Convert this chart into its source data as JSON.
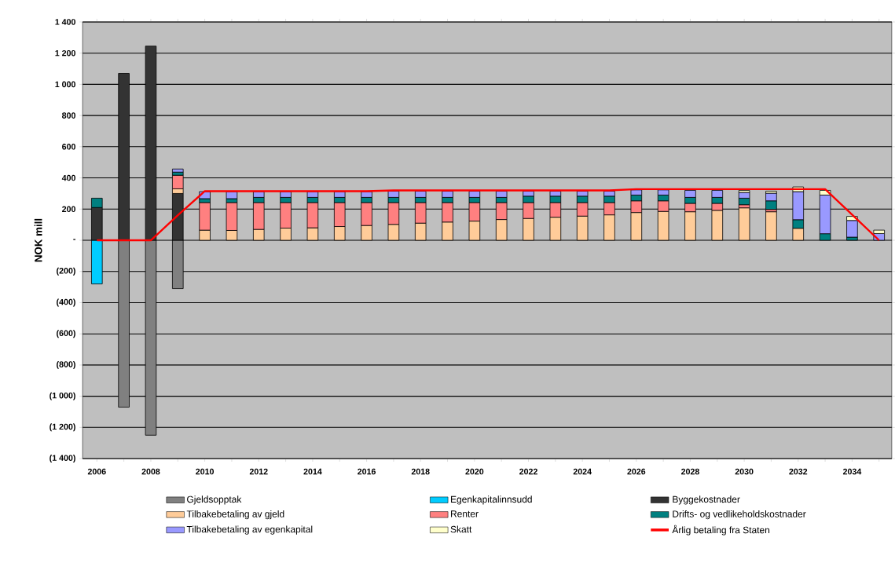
{
  "chart_data": {
    "type": "bar",
    "stacked": true,
    "ylabel": "NOK mill",
    "grid": "y",
    "legend": "bottom",
    "categories": [
      "2006",
      null,
      "2008",
      null,
      "2010",
      null,
      "2012",
      null,
      "2014",
      null,
      "2016",
      null,
      "2018",
      null,
      "2020",
      null,
      "2022",
      null,
      "2024",
      null,
      "2026",
      null,
      "2028",
      null,
      "2030",
      null,
      "2032",
      null,
      "2034",
      null
    ],
    "ylim": [
      -1400,
      1400
    ],
    "yticks": [
      {
        "value": -1400,
        "label": "(1 400)"
      },
      {
        "value": -1200,
        "label": "(1 200)"
      },
      {
        "value": -1000,
        "label": "(1 000)"
      },
      {
        "value": -800,
        "label": "(800)"
      },
      {
        "value": -600,
        "label": "(600)"
      },
      {
        "value": -400,
        "label": "(400)"
      },
      {
        "value": -200,
        "label": "(200)"
      },
      {
        "value": 0,
        "label": "-"
      },
      200,
      400,
      600,
      800,
      {
        "value": 1000,
        "label": "1 000"
      },
      {
        "value": 1200,
        "label": "1 200"
      },
      {
        "value": 1400,
        "label": "1 400"
      }
    ],
    "series": [
      {
        "name": "Gjeldsopptak",
        "color": "#808080",
        "values": [
          null,
          -1070,
          -1250,
          -310,
          null,
          null,
          null,
          null,
          null,
          null,
          null,
          null,
          null,
          null,
          null,
          null,
          null,
          null,
          null,
          null,
          null,
          null,
          null,
          null,
          null,
          null,
          null,
          null,
          null,
          null
        ]
      },
      {
        "name": "Egenkapitalinnsudd",
        "color": "#00ccff",
        "values": [
          -280,
          null,
          null,
          null,
          null,
          null,
          null,
          null,
          null,
          null,
          null,
          null,
          null,
          null,
          null,
          null,
          null,
          null,
          null,
          null,
          null,
          null,
          null,
          null,
          null,
          null,
          null,
          null,
          null,
          null
        ]
      },
      {
        "name": "Byggekostnader",
        "color": "#333333",
        "values": [
          210,
          1070,
          1245,
          300,
          null,
          null,
          null,
          null,
          null,
          null,
          null,
          null,
          null,
          null,
          null,
          null,
          null,
          null,
          null,
          null,
          null,
          null,
          null,
          null,
          null,
          null,
          null,
          null,
          null,
          null
        ]
      },
      {
        "name": "Tilbakebetaling av gjeld",
        "color": "#ffcc99",
        "values": [
          null,
          null,
          null,
          30,
          65,
          63,
          70,
          78,
          80,
          88,
          95,
          102,
          110,
          117,
          123,
          133,
          140,
          148,
          155,
          163,
          178,
          185,
          183,
          192,
          208,
          183,
          77,
          null,
          null,
          null
        ]
      },
      {
        "name": "Renter",
        "color": "#ff8080",
        "values": [
          null,
          null,
          null,
          87,
          177,
          179,
          172,
          164,
          162,
          154,
          147,
          140,
          132,
          125,
          119,
          109,
          102,
          94,
          87,
          79,
          75,
          68,
          54,
          45,
          20,
          15,
          null,
          null,
          null,
          null
        ]
      },
      {
        "name": "Drifts- og vedlikeholdskostnader",
        "color": "#008080",
        "values": [
          60,
          null,
          null,
          20,
          25,
          25,
          33,
          33,
          33,
          33,
          33,
          33,
          33,
          33,
          33,
          33,
          41,
          41,
          41,
          41,
          37,
          37,
          38,
          38,
          42,
          55,
          55,
          42,
          20,
          null
        ]
      },
      {
        "name": "Tilbakebetaling av egenkapital",
        "color": "#9999ff",
        "values": [
          null,
          null,
          null,
          20,
          45,
          45,
          37,
          37,
          37,
          37,
          37,
          40,
          40,
          40,
          40,
          40,
          32,
          32,
          32,
          32,
          33,
          33,
          45,
          45,
          37,
          49,
          180,
          248,
          107,
          43
        ]
      },
      {
        "name": "Skatt",
        "color": "#ffffcc",
        "values": [
          null,
          null,
          null,
          null,
          null,
          null,
          null,
          null,
          null,
          null,
          null,
          null,
          null,
          null,
          null,
          null,
          null,
          null,
          null,
          null,
          null,
          null,
          null,
          null,
          13,
          13,
          30,
          30,
          26,
          22
        ]
      },
      {
        "name": "Årlig betaling fra Staten",
        "type": "line",
        "color": "#ff0000",
        "values": [
          0,
          0,
          0,
          160,
          315,
          315,
          315,
          315,
          315,
          315,
          315,
          320,
          320,
          320,
          320,
          320,
          320,
          320,
          320,
          320,
          328,
          328,
          328,
          328,
          328,
          328,
          328,
          328,
          164,
          0
        ]
      }
    ]
  }
}
